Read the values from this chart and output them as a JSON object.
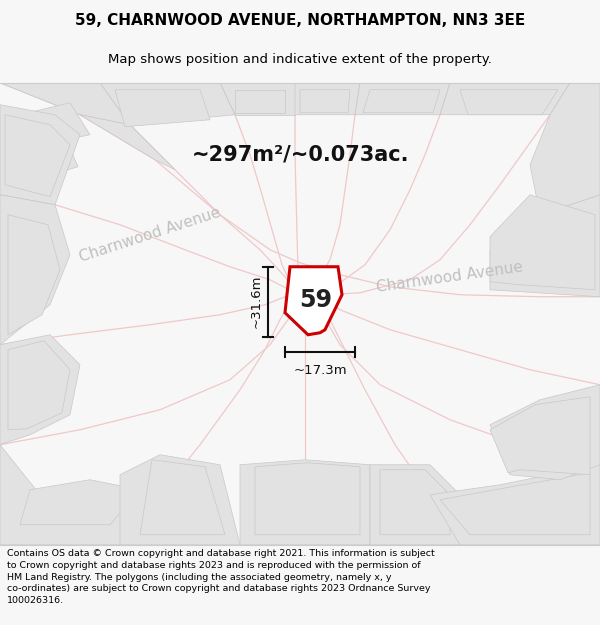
{
  "title_line1": "59, CHARNWOOD AVENUE, NORTHAMPTON, NN3 3EE",
  "title_line2": "Map shows position and indicative extent of the property.",
  "area_text": "~297m²/~0.073ac.",
  "property_number": "59",
  "dim_height": "~31.6m",
  "dim_width": "~17.3m",
  "street_label": "Charnwood Avenue",
  "footer_text": "Contains OS data © Crown copyright and database right 2021. This information is subject to Crown copyright and database rights 2023 and is reproduced with the permission of HM Land Registry. The polygons (including the associated geometry, namely x, y co-ordinates) are subject to Crown copyright and database rights 2023 Ordnance Survey 100026316.",
  "bg_color": "#f7f7f7",
  "map_bg": "#f7f7f7",
  "road_color": "#f0c8c8",
  "building_color": "#e2e2e2",
  "building_edge": "#c8c8c8",
  "property_fill": "#ffffff",
  "property_edge": "#cc0000",
  "dim_color": "#111111",
  "street_text_color": "#c0c0c0",
  "title_color": "#000000",
  "footer_color": "#000000"
}
